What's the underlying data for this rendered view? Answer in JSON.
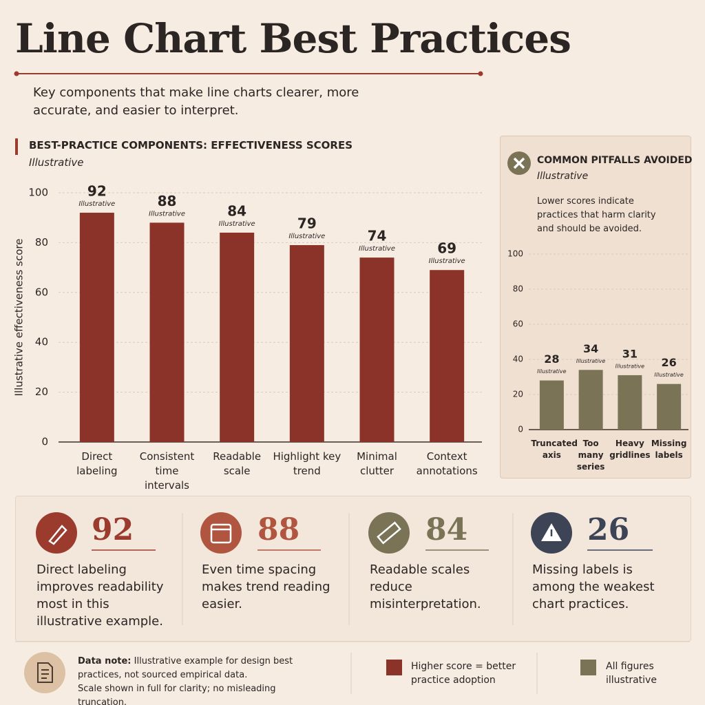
{
  "header": {
    "title": "Line Chart Best Practices",
    "subtitle": "Key components that make line charts clearer, more accurate, and easier to interpret."
  },
  "chart_data": [
    {
      "type": "bar",
      "title": "BEST-PRACTICE COMPONENTS: EFFECTIVENESS SCORES",
      "subtitle": "Illustrative",
      "y_label": "Illustrative effectiveness score",
      "categories": [
        "Direct labeling",
        "Consistent time intervals",
        "Readable scale",
        "Highlight key trend",
        "Minimal clutter",
        "Context annotations"
      ],
      "values": [
        92,
        88,
        84,
        79,
        74,
        69
      ],
      "value_note": "Illustrative",
      "color": "#8b3329",
      "ylim": [
        0,
        100
      ],
      "yticks": [
        0,
        20,
        40,
        60,
        80,
        100
      ],
      "grid": true
    },
    {
      "type": "bar",
      "title": "COMMON PITFALLS AVOIDED",
      "subtitle": "Illustrative",
      "description": "Lower scores indicate practices that harm clarity and should be avoided.",
      "categories": [
        "Truncated axis",
        "Too many series",
        "Heavy gridlines",
        "Missing labels"
      ],
      "values": [
        28,
        34,
        31,
        26
      ],
      "value_note": "Illustrative",
      "color": "#7a7356",
      "ylim": [
        0,
        100
      ],
      "yticks": [
        0,
        20,
        40,
        60,
        80,
        100
      ],
      "grid": true
    }
  ],
  "stats": [
    {
      "value": 92,
      "text": "Direct labeling improves readability most in this illustrative example."
    },
    {
      "value": 88,
      "text": "Even time spacing makes trend reading easier."
    },
    {
      "value": 84,
      "text": "Readable scales reduce misinterpretation."
    },
    {
      "value": 26,
      "text": "Missing labels is among the weakest chart practices."
    }
  ],
  "footer": {
    "note_label": "Data note:",
    "note": "Illustrative example for design best practices, not sourced empirical data.",
    "note2": "Scale shown in full for clarity; no misleading truncation.",
    "legend": [
      {
        "label": "Higher score = better practice adoption",
        "color": "#8b3329"
      },
      {
        "label": "All figures illustrative",
        "color": "#7a7356"
      }
    ]
  }
}
